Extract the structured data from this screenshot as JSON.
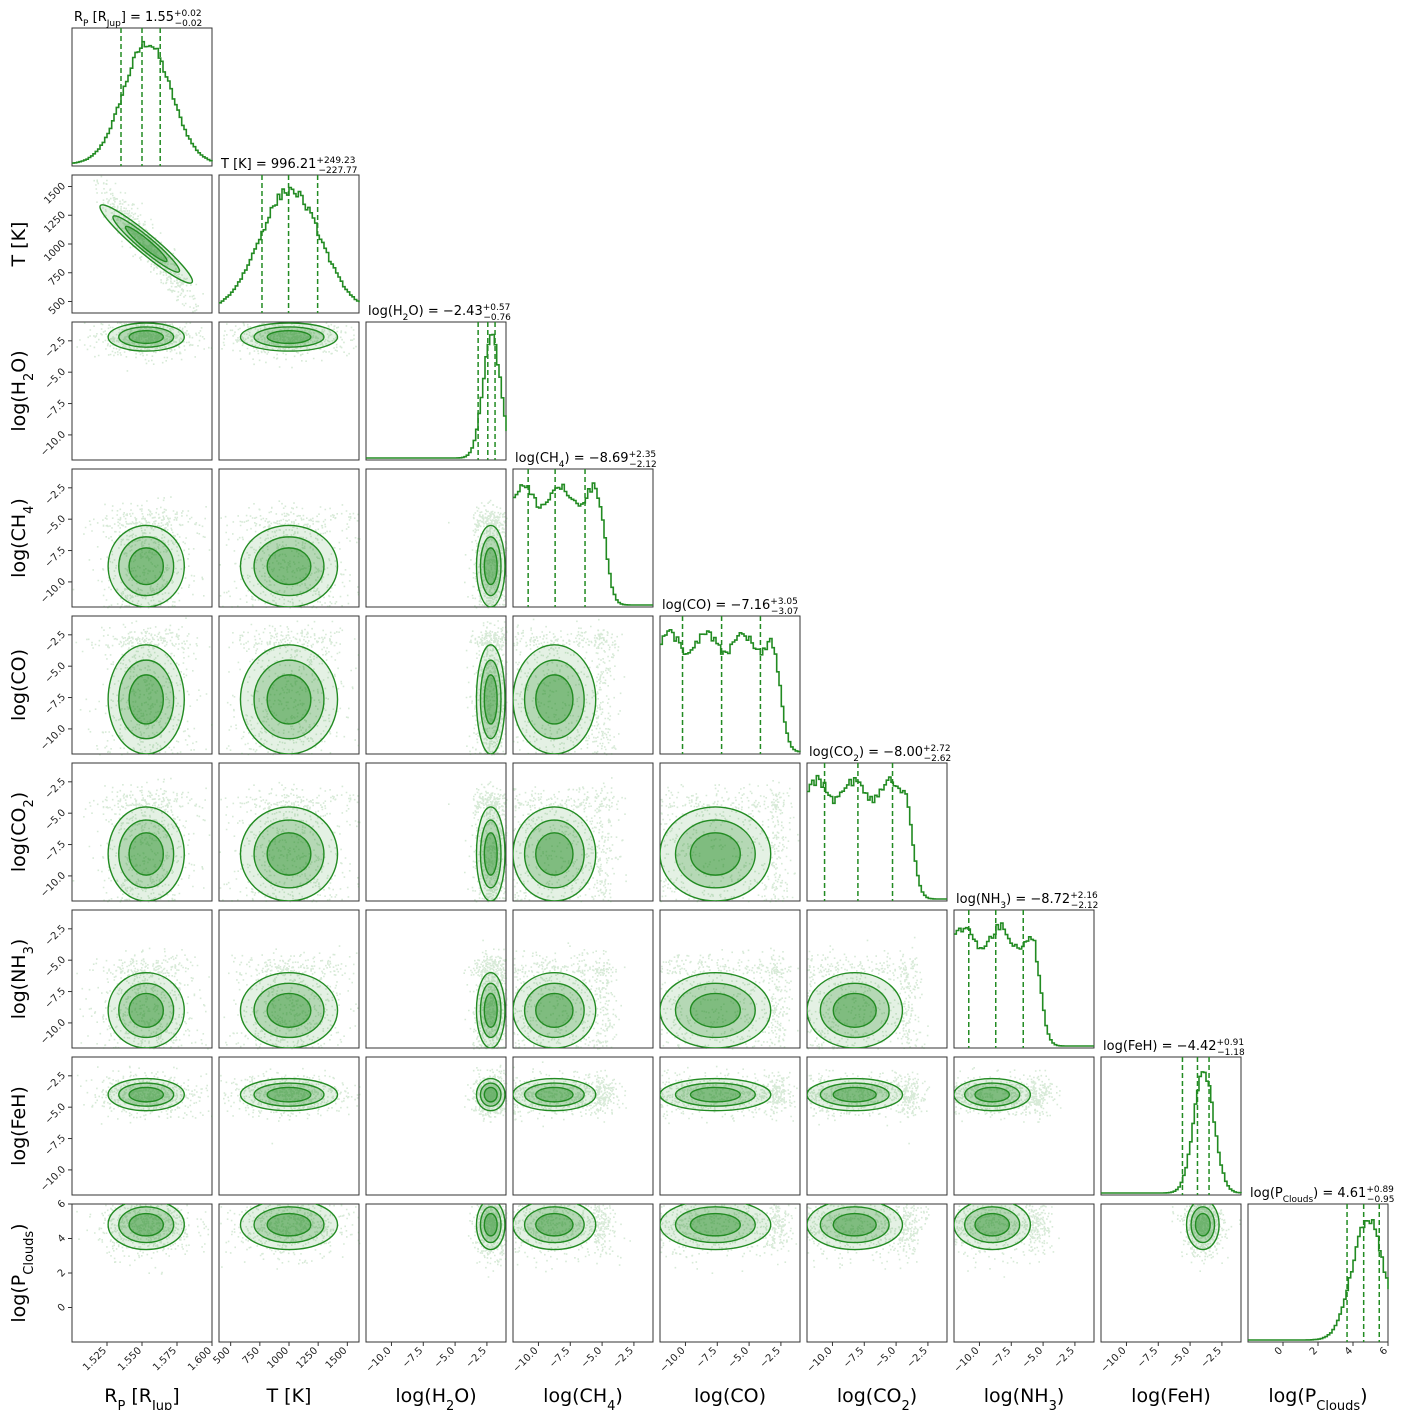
{
  "colors": {
    "series": "#228b22",
    "axis": "#333333",
    "background": "#ffffff"
  },
  "chart_data": {
    "type": "corner",
    "parameters": [
      {
        "id": "rp",
        "label_base": "R",
        "label_sub": "P",
        "label_suffix": " [R",
        "label_sub2": "Jup",
        "label_suffix2": "]",
        "title": {
          "value": "1.55",
          "plus": "+0.02",
          "minus": "−0.02"
        },
        "range": [
          1.5,
          1.6
        ],
        "ticks": [
          1.525,
          1.55,
          1.575,
          1.6
        ],
        "tick_labels": [
          "1.525",
          "1.550",
          "1.575",
          "1.600"
        ],
        "median": 1.55,
        "q16": 1.535,
        "q84": 1.563,
        "shape": "peak",
        "hist_center": 1.553,
        "hist_width": 0.017
      },
      {
        "id": "t",
        "label_base": "T [K]",
        "title": {
          "value": "996.21",
          "plus": "+249.23",
          "minus": "−227.77"
        },
        "range": [
          400,
          1600
        ],
        "ticks": [
          500,
          750,
          1000,
          1250,
          1500
        ],
        "tick_labels": [
          "500",
          "750",
          "1000",
          "1250",
          "1500"
        ],
        "median": 996.21,
        "q16": 768.44,
        "q84": 1245.44,
        "shape": "peak",
        "hist_center": 1000,
        "hist_width": 260
      },
      {
        "id": "h2o",
        "label_base": "log(H",
        "label_sub": "2",
        "label_suffix": "O)",
        "title": {
          "value": "−2.43",
          "plus": "+0.57",
          "minus": "−0.76"
        },
        "range": [
          -12,
          -1
        ],
        "ticks": [
          -10,
          -7.5,
          -5,
          -2.5
        ],
        "tick_labels": [
          "−10.0",
          "−7.5",
          "−5.0",
          "−2.5"
        ],
        "median": -2.43,
        "q16": -3.19,
        "q84": -1.86,
        "shape": "peak",
        "hist_center": -2.2,
        "hist_width": 0.7
      },
      {
        "id": "ch4",
        "label_base": "log(CH",
        "label_sub": "4",
        "label_suffix": ")",
        "title": {
          "value": "−8.69",
          "plus": "+2.35",
          "minus": "−2.12"
        },
        "range": [
          -12,
          -1
        ],
        "ticks": [
          -10,
          -7.5,
          -5,
          -2.5
        ],
        "tick_labels": [
          "−10.0",
          "−7.5",
          "−5.0",
          "−2.5"
        ],
        "median": -8.69,
        "q16": -10.81,
        "q84": -6.34,
        "shape": "plateau",
        "plateau": [
          -12,
          -5.5
        ],
        "hist_center": -8.5,
        "hist_width": 3
      },
      {
        "id": "co",
        "label_base": "log(CO)",
        "title": {
          "value": "−7.16",
          "plus": "+3.05",
          "minus": "−3.07"
        },
        "range": [
          -12,
          -1
        ],
        "ticks": [
          -10,
          -7.5,
          -5,
          -2.5
        ],
        "tick_labels": [
          "−10.0",
          "−7.5",
          "−5.0",
          "−2.5"
        ],
        "median": -7.16,
        "q16": -10.23,
        "q84": -4.11,
        "shape": "plateau",
        "plateau": [
          -12,
          -3.3
        ],
        "hist_center": -7,
        "hist_width": 4
      },
      {
        "id": "co2",
        "label_base": "log(CO",
        "label_sub": "2",
        "label_suffix": ")",
        "title": {
          "value": "−8.00",
          "plus": "+2.72",
          "minus": "−2.62"
        },
        "range": [
          -12,
          -1
        ],
        "ticks": [
          -10,
          -7.5,
          -5,
          -2.5
        ],
        "tick_labels": [
          "−10.0",
          "−7.5",
          "−5.0",
          "−2.5"
        ],
        "median": -8.0,
        "q16": -10.62,
        "q84": -5.28,
        "shape": "plateau",
        "plateau": [
          -12,
          -4.5
        ],
        "hist_center": -8,
        "hist_width": 3.5
      },
      {
        "id": "nh3",
        "label_base": "log(NH",
        "label_sub": "3",
        "label_suffix": ")",
        "title": {
          "value": "−8.72",
          "plus": "+2.16",
          "minus": "−2.12"
        },
        "range": [
          -12,
          -1
        ],
        "ticks": [
          -10,
          -7.5,
          -5,
          -2.5
        ],
        "tick_labels": [
          "−10.0",
          "−7.5",
          "−5.0",
          "−2.5"
        ],
        "median": -8.72,
        "q16": -10.84,
        "q84": -6.56,
        "shape": "plateau",
        "plateau": [
          -12,
          -6.0
        ],
        "hist_center": -8.7,
        "hist_width": 2.5
      },
      {
        "id": "feh",
        "label_base": "log(FeH)",
        "title": {
          "value": "−4.42",
          "plus": "+0.91",
          "minus": "−1.18"
        },
        "range": [
          -12,
          -1
        ],
        "ticks": [
          -10,
          -7.5,
          -5,
          -2.5
        ],
        "tick_labels": [
          "−10.0",
          "−7.5",
          "−5.0",
          "−2.5"
        ],
        "median": -4.42,
        "q16": -5.6,
        "q84": -3.51,
        "shape": "peak",
        "hist_center": -4.0,
        "hist_width": 0.8
      },
      {
        "id": "pclouds",
        "label_base": "log(P",
        "label_sub": "Clouds",
        "label_suffix": ")",
        "title": {
          "value": "4.61",
          "plus": "+0.89",
          "minus": "−0.95"
        },
        "range": [
          -2,
          6
        ],
        "ticks": [
          0,
          2,
          4,
          6
        ],
        "tick_labels": [
          "0",
          "2",
          "4",
          "6"
        ],
        "median": 4.61,
        "q16": 3.66,
        "q84": 5.5,
        "shape": "peak",
        "hist_center": 4.8,
        "hist_width": 0.9
      }
    ],
    "rows_with_y_ticks": [
      1,
      2,
      3,
      4,
      5,
      6,
      7,
      8
    ],
    "correlations": [
      {
        "row": 1,
        "col": 0,
        "rho": -0.95
      }
    ],
    "legend": "none",
    "grid": false
  }
}
